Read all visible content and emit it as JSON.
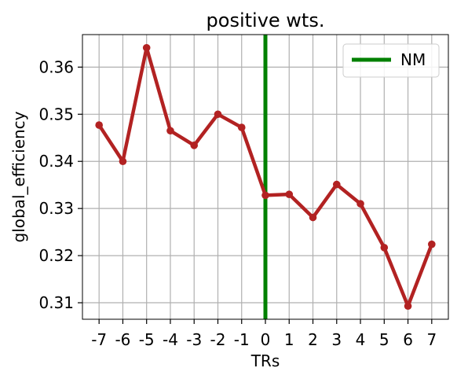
{
  "chart_data": {
    "type": "line",
    "title": "positive wts.",
    "xlabel": "TRs",
    "ylabel": "global_efficiency",
    "x": [
      -7,
      -6,
      -5,
      -4,
      -3,
      -2,
      -1,
      0,
      1,
      2,
      3,
      4,
      5,
      6,
      7
    ],
    "x_tick_labels": [
      "-7",
      "-6",
      "-5",
      "-4",
      "-3",
      "-2",
      "-1",
      "0",
      "1",
      "2",
      "3",
      "4",
      "5",
      "6",
      "7"
    ],
    "xlim": [
      -7.7,
      7.7
    ],
    "y_ticks": [
      0.31,
      0.32,
      0.33,
      0.34,
      0.35,
      0.36
    ],
    "y_tick_labels": [
      "0.31",
      "0.32",
      "0.33",
      "0.34",
      "0.35",
      "0.36"
    ],
    "ylim": [
      0.3065,
      0.3669
    ],
    "grid": true,
    "series": [
      {
        "values": [
          0.3477,
          0.34,
          0.3641,
          0.3465,
          0.3434,
          0.35,
          0.3472,
          0.3328,
          0.333,
          0.3281,
          0.3351,
          0.331,
          0.3217,
          0.3093,
          0.3224
        ],
        "color": "#b22222"
      }
    ],
    "vline": {
      "x": 0,
      "name": "NM",
      "color": "#008000"
    },
    "legend": {
      "placement": "top-right",
      "entries": [
        "NM"
      ]
    }
  }
}
